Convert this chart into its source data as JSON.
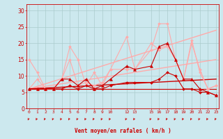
{
  "bg_color": "#cce8ee",
  "grid_color": "#aacccc",
  "x_positions": [
    0,
    1,
    2,
    3,
    4,
    5,
    6,
    7,
    8,
    9,
    10,
    12,
    13,
    15,
    16,
    17,
    18,
    19,
    20,
    21,
    22,
    23
  ],
  "x_labels": [
    "0",
    "1",
    "2",
    "3",
    "4",
    "5",
    "6",
    "7",
    "8",
    "9",
    "10",
    "12",
    "13",
    "15",
    "16",
    "17",
    "18",
    "19",
    "20",
    "21",
    "22",
    "23"
  ],
  "xlabel": "Vent moyen/en rafales ( km/h )",
  "ylabel_ticks": [
    0,
    5,
    10,
    15,
    20,
    25,
    30
  ],
  "ylim": [
    0,
    32
  ],
  "xlim": [
    -0.3,
    23.3
  ],
  "series": [
    {
      "x": [
        0,
        1,
        2,
        3,
        4,
        5,
        6,
        7,
        8,
        9,
        10,
        12,
        13,
        15,
        16,
        17,
        18,
        19,
        20,
        21,
        22,
        23
      ],
      "y": [
        15,
        11,
        6,
        6,
        9,
        19,
        15,
        7,
        11,
        7,
        12,
        22,
        12,
        20,
        18,
        19,
        15,
        9,
        20,
        12,
        6,
        7
      ],
      "color": "#ffaaaa",
      "lw": 0.8,
      "marker": "D",
      "ms": 2.0
    },
    {
      "x": [
        0,
        1,
        2,
        3,
        4,
        5,
        6,
        7,
        8,
        9,
        10,
        12,
        13,
        15,
        16,
        17,
        18,
        19,
        20,
        21,
        22,
        23
      ],
      "y": [
        6,
        9,
        6,
        6,
        9,
        15,
        7,
        8,
        7,
        8,
        12,
        12,
        12,
        18,
        26,
        26,
        15,
        9,
        21,
        11,
        6,
        7
      ],
      "color": "#ffaaaa",
      "lw": 0.8,
      "marker": "D",
      "ms": 2.0
    },
    {
      "x": [
        0,
        1,
        2,
        3,
        4,
        5,
        6,
        7,
        8,
        9,
        10,
        12,
        13,
        15,
        16,
        17,
        18,
        19,
        20,
        21,
        22,
        23
      ],
      "y": [
        6,
        6,
        6,
        6,
        9,
        9,
        7,
        9,
        6,
        7,
        9,
        13,
        12,
        13,
        19,
        20,
        15,
        9,
        9,
        6,
        5,
        4
      ],
      "color": "#cc0000",
      "lw": 0.8,
      "marker": "^",
      "ms": 3.0
    },
    {
      "x": [
        0,
        1,
        2,
        3,
        4,
        5,
        6,
        7,
        8,
        9,
        10,
        12,
        13,
        15,
        16,
        17,
        18,
        19,
        20,
        21,
        22,
        23
      ],
      "y": [
        6,
        6,
        6,
        6,
        6,
        7,
        6,
        7,
        6,
        6,
        7,
        8,
        8,
        8,
        9,
        11,
        10,
        6,
        6,
        5,
        5,
        4
      ],
      "color": "#cc0000",
      "lw": 0.8,
      "marker": "D",
      "ms": 2.0
    },
    {
      "x": [
        0,
        23
      ],
      "y": [
        6,
        24
      ],
      "color": "#ffaaaa",
      "lw": 1.0,
      "marker": null,
      "ms": 0
    },
    {
      "x": [
        0,
        23
      ],
      "y": [
        6,
        15
      ],
      "color": "#ffaaaa",
      "lw": 1.0,
      "marker": null,
      "ms": 0
    },
    {
      "x": [
        0,
        23
      ],
      "y": [
        6,
        9
      ],
      "color": "#cc0000",
      "lw": 1.0,
      "marker": null,
      "ms": 0
    },
    {
      "x": [
        0,
        23
      ],
      "y": [
        6,
        6
      ],
      "color": "#cc0000",
      "lw": 0.8,
      "marker": null,
      "ms": 0
    }
  ],
  "arrows_color": "#cc0000",
  "tick_color": "#cc0000",
  "label_color": "#cc0000"
}
